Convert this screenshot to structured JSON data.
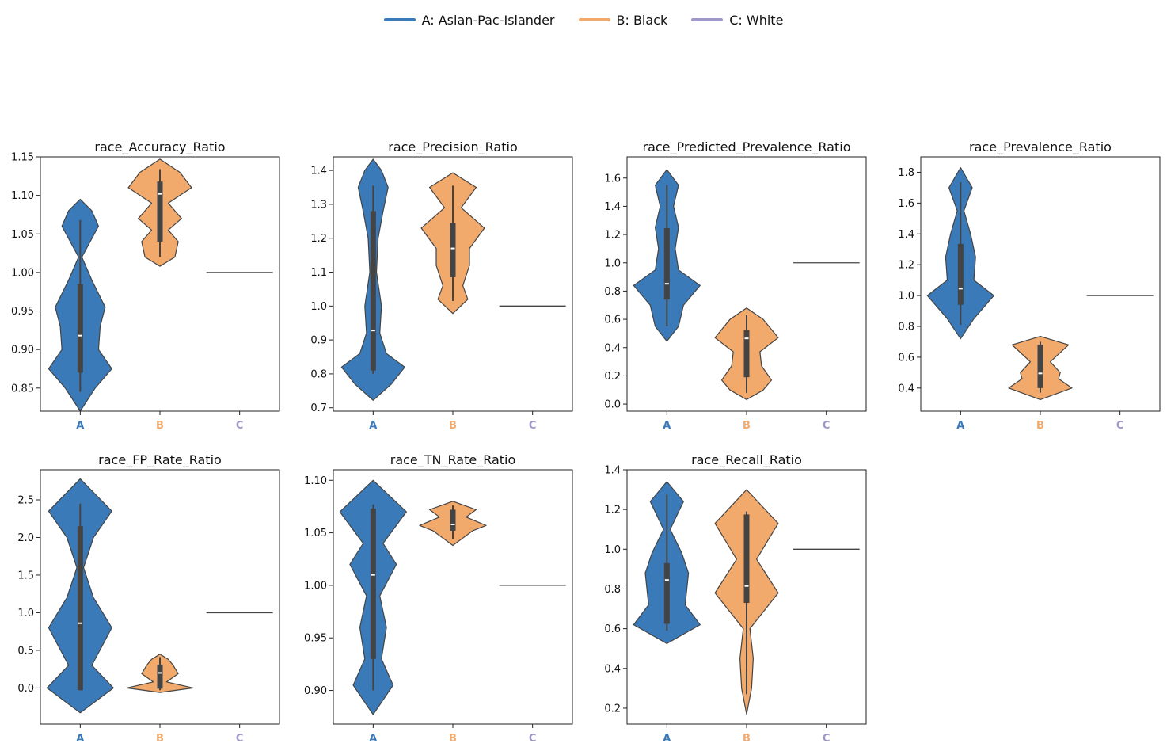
{
  "legend": [
    {
      "label": "A: Asian-Pac-Islander",
      "color": "#3a7ab8"
    },
    {
      "label": "B: Black",
      "color": "#f2a96c"
    },
    {
      "label": "C: White",
      "color": "#9e99c9"
    }
  ],
  "chart_data": [
    {
      "type": "violin",
      "title": "race_Accuracy_Ratio",
      "categories": [
        "A",
        "B",
        "C"
      ],
      "ylim": [
        0.82,
        1.15
      ],
      "yticks": [
        0.85,
        0.9,
        0.95,
        1.0,
        1.05,
        1.1,
        1.15
      ],
      "ytick_labels": [
        "0.85",
        "0.90",
        "0.95",
        "1.00",
        "1.05",
        "1.10",
        "1.15"
      ],
      "series": [
        {
          "category": "A",
          "min": 0.845,
          "q1": 0.87,
          "median": 0.918,
          "q3": 0.985,
          "max": 1.068,
          "density": [
            [
              0.82,
              0.0
            ],
            [
              0.85,
              0.45
            ],
            [
              0.875,
              0.95
            ],
            [
              0.9,
              0.55
            ],
            [
              0.93,
              0.6
            ],
            [
              0.955,
              0.75
            ],
            [
              0.99,
              0.35
            ],
            [
              1.02,
              0.05
            ],
            [
              1.06,
              0.55
            ],
            [
              1.08,
              0.35
            ],
            [
              1.095,
              0.0
            ]
          ]
        },
        {
          "category": "B",
          "min": 1.02,
          "q1": 1.04,
          "median": 1.102,
          "q3": 1.118,
          "max": 1.134,
          "density": [
            [
              1.008,
              0.0
            ],
            [
              1.02,
              0.45
            ],
            [
              1.04,
              0.55
            ],
            [
              1.055,
              0.25
            ],
            [
              1.07,
              0.65
            ],
            [
              1.09,
              0.25
            ],
            [
              1.11,
              0.95
            ],
            [
              1.13,
              0.6
            ],
            [
              1.147,
              0.0
            ]
          ]
        },
        {
          "category": "C",
          "constant": 1.0
        }
      ]
    },
    {
      "type": "violin",
      "title": "race_Precision_Ratio",
      "categories": [
        "A",
        "B",
        "C"
      ],
      "ylim": [
        0.69,
        1.44
      ],
      "yticks": [
        0.7,
        0.8,
        0.9,
        1.0,
        1.1,
        1.2,
        1.3,
        1.4
      ],
      "ytick_labels": [
        "0.7",
        "0.8",
        "0.9",
        "1.0",
        "1.1",
        "1.2",
        "1.3",
        "1.4"
      ],
      "series": [
        {
          "category": "A",
          "min": 0.8,
          "q1": 0.81,
          "median": 0.928,
          "q3": 1.28,
          "max": 1.355,
          "density": [
            [
              0.722,
              0.0
            ],
            [
              0.77,
              0.55
            ],
            [
              0.82,
              0.95
            ],
            [
              0.86,
              0.4
            ],
            [
              0.92,
              0.2
            ],
            [
              1.0,
              0.25
            ],
            [
              1.1,
              0.1
            ],
            [
              1.2,
              0.15
            ],
            [
              1.28,
              0.3
            ],
            [
              1.35,
              0.45
            ],
            [
              1.4,
              0.25
            ],
            [
              1.433,
              0.0
            ]
          ]
        },
        {
          "category": "B",
          "min": 1.015,
          "q1": 1.085,
          "median": 1.17,
          "q3": 1.245,
          "max": 1.355,
          "density": [
            [
              0.978,
              0.0
            ],
            [
              1.02,
              0.45
            ],
            [
              1.06,
              0.3
            ],
            [
              1.12,
              0.5
            ],
            [
              1.17,
              0.5
            ],
            [
              1.23,
              0.95
            ],
            [
              1.29,
              0.25
            ],
            [
              1.35,
              0.7
            ],
            [
              1.393,
              0.0
            ]
          ]
        },
        {
          "category": "C",
          "constant": 1.0
        }
      ]
    },
    {
      "type": "violin",
      "title": "race_Predicted_Prevalence_Ratio",
      "categories": [
        "A",
        "B",
        "C"
      ],
      "ylim": [
        -0.05,
        1.75
      ],
      "yticks": [
        0.0,
        0.2,
        0.4,
        0.6,
        0.8,
        1.0,
        1.2,
        1.4,
        1.6
      ],
      "ytick_labels": [
        "0.0",
        "0.2",
        "0.4",
        "0.6",
        "0.8",
        "1.0",
        "1.2",
        "1.4",
        "1.6"
      ],
      "series": [
        {
          "category": "A",
          "min": 0.55,
          "q1": 0.74,
          "median": 0.852,
          "q3": 1.245,
          "max": 1.55,
          "density": [
            [
              0.445,
              0.0
            ],
            [
              0.55,
              0.35
            ],
            [
              0.7,
              0.5
            ],
            [
              0.84,
              1.0
            ],
            [
              0.95,
              0.35
            ],
            [
              1.1,
              0.25
            ],
            [
              1.25,
              0.35
            ],
            [
              1.4,
              0.2
            ],
            [
              1.55,
              0.35
            ],
            [
              1.66,
              0.0
            ]
          ]
        },
        {
          "category": "B",
          "min": 0.08,
          "q1": 0.19,
          "median": 0.465,
          "q3": 0.525,
          "max": 0.63,
          "density": [
            [
              0.032,
              0.0
            ],
            [
              0.1,
              0.5
            ],
            [
              0.17,
              0.75
            ],
            [
              0.27,
              0.45
            ],
            [
              0.37,
              0.4
            ],
            [
              0.47,
              0.95
            ],
            [
              0.6,
              0.5
            ],
            [
              0.68,
              0.0
            ]
          ]
        },
        {
          "category": "C",
          "constant": 1.0
        }
      ]
    },
    {
      "type": "violin",
      "title": "race_Prevalence_Ratio",
      "categories": [
        "A",
        "B",
        "C"
      ],
      "ylim": [
        0.25,
        1.9
      ],
      "yticks": [
        0.4,
        0.6,
        0.8,
        1.0,
        1.2,
        1.4,
        1.6,
        1.8
      ],
      "ytick_labels": [
        "0.4",
        "0.6",
        "0.8",
        "1.0",
        "1.2",
        "1.4",
        "1.6",
        "1.8"
      ],
      "series": [
        {
          "category": "A",
          "min": 0.81,
          "q1": 0.94,
          "median": 1.045,
          "q3": 1.335,
          "max": 1.735,
          "density": [
            [
              0.72,
              0.0
            ],
            [
              0.85,
              0.4
            ],
            [
              1.0,
              1.0
            ],
            [
              1.1,
              0.4
            ],
            [
              1.25,
              0.45
            ],
            [
              1.4,
              0.3
            ],
            [
              1.55,
              0.1
            ],
            [
              1.7,
              0.35
            ],
            [
              1.83,
              0.0
            ]
          ]
        },
        {
          "category": "B",
          "min": 0.37,
          "q1": 0.4,
          "median": 0.495,
          "q3": 0.68,
          "max": 0.7,
          "density": [
            [
              0.325,
              0.0
            ],
            [
              0.4,
              0.95
            ],
            [
              0.46,
              0.55
            ],
            [
              0.5,
              0.6
            ],
            [
              0.57,
              0.3
            ],
            [
              0.68,
              0.85
            ],
            [
              0.735,
              0.0
            ]
          ]
        },
        {
          "category": "C",
          "constant": 1.0
        }
      ]
    },
    {
      "type": "violin",
      "title": "race_FP_Rate_Ratio",
      "categories": [
        "A",
        "B",
        "C"
      ],
      "ylim": [
        -0.48,
        2.9
      ],
      "yticks": [
        0.0,
        0.5,
        1.0,
        1.5,
        2.0,
        2.5
      ],
      "ytick_labels": [
        "0.0",
        "0.5",
        "1.0",
        "1.5",
        "2.0",
        "2.5"
      ],
      "series": [
        {
          "category": "A",
          "min": -0.03,
          "q1": -0.03,
          "median": 0.86,
          "q3": 2.15,
          "max": 2.45,
          "density": [
            [
              -0.33,
              0.0
            ],
            [
              0.0,
              1.0
            ],
            [
              0.3,
              0.35
            ],
            [
              0.8,
              0.95
            ],
            [
              1.2,
              0.4
            ],
            [
              1.6,
              0.1
            ],
            [
              2.0,
              0.4
            ],
            [
              2.35,
              0.95
            ],
            [
              2.78,
              0.0
            ]
          ]
        },
        {
          "category": "B",
          "min": -0.03,
          "q1": -0.01,
          "median": 0.2,
          "q3": 0.31,
          "max": 0.41,
          "density": [
            [
              -0.06,
              0.0
            ],
            [
              0.0,
              1.0
            ],
            [
              0.08,
              0.2
            ],
            [
              0.19,
              0.55
            ],
            [
              0.3,
              0.4
            ],
            [
              0.38,
              0.25
            ],
            [
              0.45,
              0.0
            ]
          ]
        },
        {
          "category": "C",
          "constant": 1.0
        }
      ]
    },
    {
      "type": "violin",
      "title": "race_TN_Rate_Ratio",
      "categories": [
        "A",
        "B",
        "C"
      ],
      "ylim": [
        0.868,
        1.11
      ],
      "yticks": [
        0.9,
        0.95,
        1.0,
        1.05,
        1.1
      ],
      "ytick_labels": [
        "0.90",
        "0.95",
        "1.00",
        "1.05",
        "1.10"
      ],
      "series": [
        {
          "category": "A",
          "min": 0.9,
          "q1": 0.93,
          "median": 1.01,
          "q3": 1.073,
          "max": 1.077,
          "density": [
            [
              0.877,
              0.0
            ],
            [
              0.905,
              0.6
            ],
            [
              0.93,
              0.25
            ],
            [
              0.96,
              0.4
            ],
            [
              0.99,
              0.2
            ],
            [
              1.02,
              0.7
            ],
            [
              1.04,
              0.3
            ],
            [
              1.07,
              1.0
            ],
            [
              1.1,
              0.0
            ]
          ]
        },
        {
          "category": "B",
          "min": 1.044,
          "q1": 1.052,
          "median": 1.058,
          "q3": 1.072,
          "max": 1.076,
          "density": [
            [
              1.038,
              0.0
            ],
            [
              1.045,
              0.3
            ],
            [
              1.052,
              0.6
            ],
            [
              1.057,
              1.0
            ],
            [
              1.065,
              0.4
            ],
            [
              1.072,
              0.7
            ],
            [
              1.08,
              0.0
            ]
          ]
        },
        {
          "category": "C",
          "constant": 1.0
        }
      ]
    },
    {
      "type": "violin",
      "title": "race_Recall_Ratio",
      "categories": [
        "A",
        "B",
        "C"
      ],
      "ylim": [
        0.12,
        1.4
      ],
      "yticks": [
        0.2,
        0.4,
        0.6,
        0.8,
        1.0,
        1.2,
        1.4
      ],
      "ytick_labels": [
        "0.2",
        "0.4",
        "0.6",
        "0.8",
        "1.0",
        "1.2",
        "1.4"
      ],
      "series": [
        {
          "category": "A",
          "min": 0.59,
          "q1": 0.625,
          "median": 0.845,
          "q3": 0.93,
          "max": 1.275,
          "density": [
            [
              0.525,
              0.0
            ],
            [
              0.62,
              1.0
            ],
            [
              0.72,
              0.55
            ],
            [
              0.8,
              0.6
            ],
            [
              0.88,
              0.65
            ],
            [
              0.98,
              0.45
            ],
            [
              1.1,
              0.1
            ],
            [
              1.24,
              0.5
            ],
            [
              1.34,
              0.0
            ]
          ]
        },
        {
          "category": "B",
          "min": 0.27,
          "q1": 0.73,
          "median": 0.815,
          "q3": 1.175,
          "max": 1.19,
          "density": [
            [
              0.17,
              0.0
            ],
            [
              0.3,
              0.15
            ],
            [
              0.45,
              0.2
            ],
            [
              0.6,
              0.1
            ],
            [
              0.78,
              0.95
            ],
            [
              0.95,
              0.3
            ],
            [
              1.13,
              0.95
            ],
            [
              1.3,
              0.0
            ]
          ]
        },
        {
          "category": "C",
          "constant": 1.0
        }
      ]
    }
  ]
}
